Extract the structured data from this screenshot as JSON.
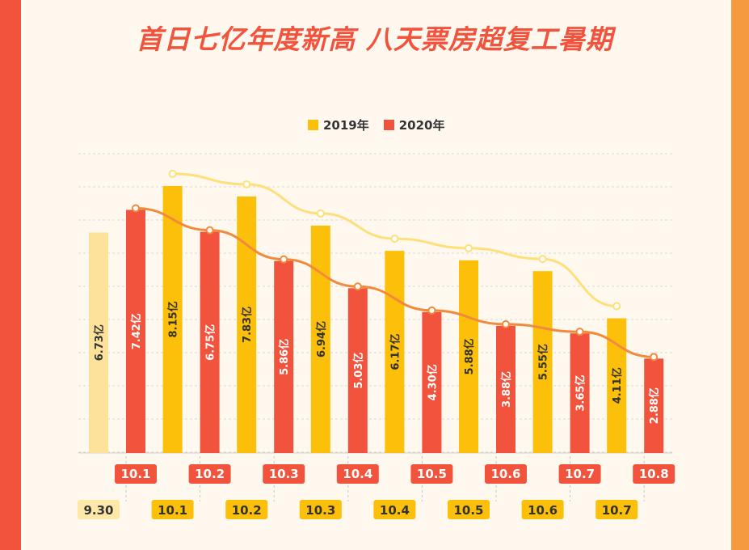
{
  "title": "首日七亿年度新高 八天票房超复工暑期",
  "legend": {
    "s2019": "2019年",
    "s2020": "2020年"
  },
  "colors": {
    "s2019": "#fcbf0a",
    "s2020": "#f2533d",
    "s2019_faded": "#fde39a",
    "line2019": "#fde07a",
    "line2020": "#f28a3c",
    "tag_faded_bg": "#fde8a8"
  },
  "chart_data": {
    "type": "bar",
    "unit": "亿",
    "ylim": [
      0,
      9.5
    ],
    "title": "首日七亿年度新高 八天票房超复工暑期",
    "series": [
      {
        "name": "2019年",
        "days": [
          "9.30",
          "10.1",
          "10.2",
          "10.3",
          "10.4",
          "10.5",
          "10.6",
          "10.7"
        ],
        "values": [
          6.73,
          8.15,
          7.83,
          6.94,
          6.17,
          5.88,
          5.55,
          4.11
        ],
        "labels": [
          "6.73亿",
          "8.15亿",
          "7.83亿",
          "6.94亿",
          "6.17亿",
          "5.88亿",
          "5.55亿",
          "4.11亿"
        ]
      },
      {
        "name": "2020年",
        "days": [
          "10.1",
          "10.2",
          "10.3",
          "10.4",
          "10.5",
          "10.6",
          "10.7",
          "10.8"
        ],
        "values": [
          7.42,
          6.75,
          5.86,
          5.03,
          4.3,
          3.88,
          3.65,
          2.88
        ],
        "labels": [
          "7.42亿",
          "6.75亿",
          "5.86亿",
          "5.03亿",
          "4.30亿",
          "3.88亿",
          "3.65亿",
          "2.88亿"
        ]
      }
    ]
  }
}
